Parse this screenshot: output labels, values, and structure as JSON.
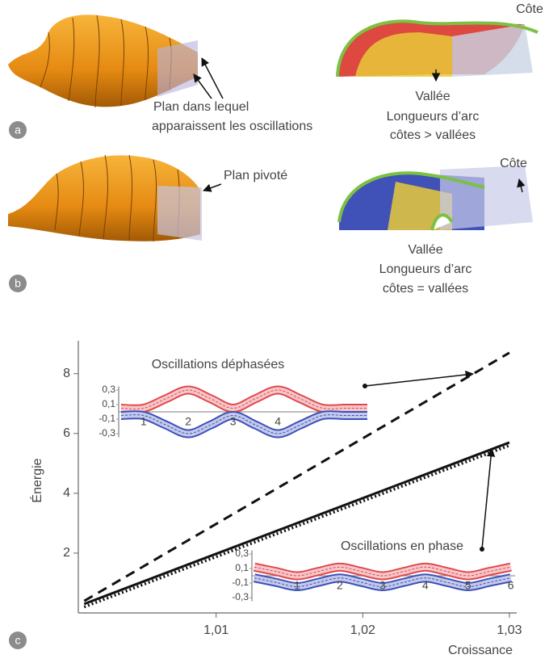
{
  "panels": [
    {
      "label": "a",
      "left": {
        "caption": [
          "Plan dans lequel",
          "apparaissent les oscillations"
        ]
      },
      "right": {
        "top_label": "Côte",
        "bottom_label": "Vallée",
        "caption": [
          "Longueurs d’arc",
          "côtes > vallées"
        ]
      }
    },
    {
      "label": "b",
      "left": {
        "caption": [
          "Plan pivoté"
        ]
      },
      "right": {
        "top_label": "Côte",
        "bottom_label": "Vallée",
        "caption": [
          "Longueurs d’arc",
          "côtes = vallées"
        ]
      }
    }
  ],
  "chart_data": [
    {
      "type": "line",
      "panel_label": "c",
      "xlabel": "Croissance",
      "ylabel": "Énergie",
      "xlim": [
        1.0006,
        1.0305
      ],
      "ylim": [
        0,
        9.1
      ],
      "xticks": [
        {
          "value": 1.01,
          "label": "1,01"
        },
        {
          "value": 1.02,
          "label": "1,02"
        },
        {
          "value": 1.03,
          "label": "1,03"
        }
      ],
      "yticks": [
        2,
        4,
        6,
        8
      ],
      "series": [
        {
          "x": [
            1.001,
            1.03
          ],
          "values": [
            0.4,
            8.7
          ],
          "color": "#111111",
          "dash": "dashed"
        },
        {
          "x": [
            1.001,
            1.03
          ],
          "values": [
            0.3,
            5.7
          ],
          "color": "#111111",
          "dash": "solid"
        },
        {
          "x": [
            1.001,
            1.03
          ],
          "values": [
            0.2,
            5.6
          ],
          "color": "#111111",
          "dash": "dotted"
        }
      ]
    },
    {
      "type": "band",
      "title": "Oscillations déphasées",
      "xlim": [
        0.5,
        6
      ],
      "ylim": [
        -0.35,
        0.35
      ],
      "xticks": [
        1,
        2,
        3,
        4
      ],
      "yticks": [
        {
          "value": 0.3,
          "label": "0,3"
        },
        {
          "value": 0.1,
          "label": "0,1"
        },
        {
          "value": -0.1,
          "label": "-0,1"
        },
        {
          "value": -0.3,
          "label": "-0,3"
        }
      ],
      "x": [
        0.5,
        1,
        1.5,
        2,
        2.5,
        3,
        3.5,
        4,
        4.5,
        5,
        5.5,
        6
      ],
      "series": [
        {
          "color": "#e0474c",
          "values": [
            0.05,
            0.05,
            0.18,
            0.3,
            0.18,
            0.05,
            0.18,
            0.3,
            0.18,
            0.05,
            0.05,
            0.05
          ]
        },
        {
          "color": "#3b4fb8",
          "values": [
            -0.05,
            -0.05,
            -0.18,
            -0.3,
            -0.18,
            -0.05,
            -0.18,
            -0.3,
            -0.18,
            -0.05,
            -0.05,
            -0.05
          ]
        }
      ]
    },
    {
      "type": "band",
      "title": "Oscillations en phase",
      "xlim": [
        0,
        6.1
      ],
      "ylim": [
        -0.35,
        0.35
      ],
      "xticks": [
        1,
        2,
        3,
        4,
        5,
        6
      ],
      "yticks": [
        {
          "value": 0.3,
          "label": "0,3"
        },
        {
          "value": 0.1,
          "label": "0,1"
        },
        {
          "value": -0.1,
          "label": "-0,1"
        },
        {
          "value": -0.3,
          "label": "-0,3"
        }
      ],
      "x": [
        0,
        0.5,
        1,
        1.5,
        2,
        2.5,
        3,
        3.5,
        4,
        4.5,
        5,
        5.5,
        6
      ],
      "series": [
        {
          "color": "#e0474c",
          "values": [
            0.12,
            0.06,
            0,
            0.06,
            0.12,
            0.06,
            0,
            0.06,
            0.12,
            0.06,
            0,
            0.06,
            0.12
          ]
        },
        {
          "color": "#3b4fb8",
          "values": [
            -0.03,
            -0.09,
            -0.15,
            -0.09,
            -0.03,
            -0.09,
            -0.15,
            -0.09,
            -0.03,
            -0.09,
            -0.15,
            -0.09,
            -0.03
          ]
        }
      ]
    }
  ]
}
